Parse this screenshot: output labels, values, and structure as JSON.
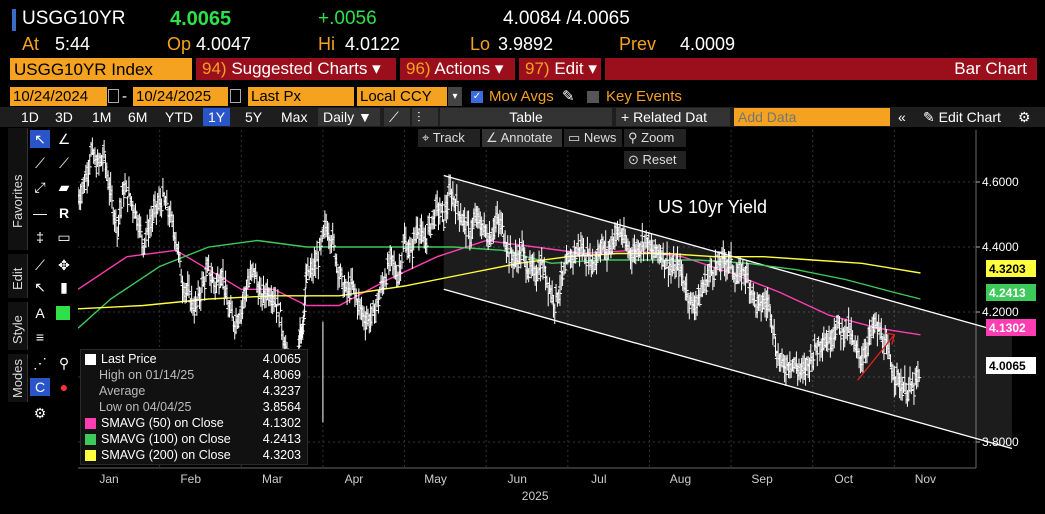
{
  "quote": {
    "ticker": "USGG10YR",
    "last": "4.0065",
    "change": "+.0056",
    "bid_ask": "4.0084 /4.0065",
    "at_label": "At",
    "time": "5:44",
    "open_label": "Op",
    "open": "4.0047",
    "high_label": "Hi",
    "high": "4.0122",
    "low_label": "Lo",
    "low": "3.9892",
    "prev_label": "Prev",
    "prev": "4.0009"
  },
  "function_bar": {
    "security": "USGG10YR Index",
    "menus": [
      {
        "num": "94)",
        "label": "Suggested Charts",
        "arrow": "▾"
      },
      {
        "num": "96)",
        "label": "Actions",
        "arrow": "▾"
      },
      {
        "num": "97)",
        "label": "Edit",
        "arrow": "▾"
      }
    ],
    "chart_type": "Bar Chart"
  },
  "settings": {
    "start_date": "10/24/2024",
    "date_sep": "-",
    "end_date": "10/24/2025",
    "field": "Last Px",
    "currency": "Local CCY",
    "mov_avgs_label": "Mov Avgs",
    "mov_avgs_checked": true,
    "key_events_label": "Key Events",
    "key_events_checked": false
  },
  "toolbar": {
    "periods": [
      "1D",
      "3D",
      "1M",
      "6M",
      "YTD",
      "1Y",
      "5Y",
      "Max"
    ],
    "active_period": "1Y",
    "frequency": "Daily ▼",
    "table_label": "Table",
    "related_label": "+ Related Dat",
    "add_data_placeholder": "Add Data",
    "edit_chart_label": "Edit Chart",
    "collapse_glyph": "«"
  },
  "chart_tools": {
    "track": "Track",
    "annotate": "Annotate",
    "news": "News",
    "zoom": "Zoom",
    "reset": "Reset"
  },
  "palette_tabs": [
    "Favorites",
    "Edit",
    "Style",
    "Modes"
  ],
  "chart_data": {
    "type": "bar",
    "title": "US 10yr Yield",
    "x_year_label": "2025",
    "x_months": [
      "Jan",
      "Feb",
      "Mar",
      "Apr",
      "May",
      "Jun",
      "Jul",
      "Aug",
      "Sep",
      "Oct",
      "Nov"
    ],
    "y_ticks": [
      "4.6000",
      "4.4000",
      "4.2000",
      "3.8000"
    ],
    "ylim": [
      3.72,
      4.76
    ],
    "series": [
      {
        "name": "Last Price",
        "color": "#ffffff",
        "current": "4.0065",
        "points": [
          [
            0.0,
            4.55
          ],
          [
            0.02,
            4.6
          ],
          [
            0.04,
            4.69
          ],
          [
            0.06,
            4.65
          ],
          [
            0.08,
            4.68
          ],
          [
            0.1,
            4.56
          ],
          [
            0.12,
            4.46
          ],
          [
            0.14,
            4.58
          ],
          [
            0.16,
            4.55
          ],
          [
            0.18,
            4.5
          ],
          [
            0.2,
            4.41
          ],
          [
            0.22,
            4.47
          ],
          [
            0.24,
            4.52
          ],
          [
            0.26,
            4.55
          ],
          [
            0.28,
            4.5
          ],
          [
            0.3,
            4.43
          ],
          [
            0.32,
            4.29
          ],
          [
            0.34,
            4.25
          ],
          [
            0.36,
            4.21
          ],
          [
            0.38,
            4.28
          ],
          [
            0.4,
            4.33
          ],
          [
            0.42,
            4.28
          ],
          [
            0.44,
            4.33
          ],
          [
            0.46,
            4.21
          ],
          [
            0.48,
            4.17
          ],
          [
            0.5,
            4.21
          ],
          [
            0.52,
            4.29
          ],
          [
            0.54,
            4.33
          ],
          [
            0.56,
            4.24
          ],
          [
            0.58,
            4.27
          ],
          [
            0.6,
            4.25
          ],
          [
            0.62,
            4.19
          ],
          [
            0.64,
            4.06
          ],
          [
            0.66,
            3.96
          ],
          [
            0.67,
            4.0
          ],
          [
            0.68,
            4.12
          ],
          [
            0.69,
            4.18
          ],
          [
            0.7,
            4.31
          ],
          [
            0.72,
            4.33
          ],
          [
            0.74,
            4.38
          ],
          [
            0.76,
            4.47
          ],
          [
            0.78,
            4.42
          ],
          [
            0.8,
            4.32
          ],
          [
            0.82,
            4.26
          ],
          [
            0.84,
            4.28
          ],
          [
            0.86,
            4.22
          ],
          [
            0.88,
            4.18
          ],
          [
            0.9,
            4.18
          ],
          [
            0.92,
            4.24
          ],
          [
            0.94,
            4.31
          ],
          [
            0.96,
            4.36
          ],
          [
            0.98,
            4.31
          ],
          [
            1.0,
            4.42
          ],
          [
            1.02,
            4.38
          ],
          [
            1.04,
            4.47
          ],
          [
            1.06,
            4.41
          ],
          [
            1.08,
            4.47
          ],
          [
            1.1,
            4.52
          ],
          [
            1.12,
            4.49
          ],
          [
            1.14,
            4.57
          ],
          [
            1.16,
            4.53
          ],
          [
            1.18,
            4.48
          ],
          [
            1.2,
            4.44
          ],
          [
            1.22,
            4.49
          ],
          [
            1.24,
            4.46
          ],
          [
            1.26,
            4.43
          ],
          [
            1.28,
            4.48
          ],
          [
            1.3,
            4.46
          ],
          [
            1.32,
            4.38
          ],
          [
            1.34,
            4.36
          ],
          [
            1.36,
            4.39
          ],
          [
            1.38,
            4.33
          ],
          [
            1.4,
            4.32
          ],
          [
            1.42,
            4.35
          ],
          [
            1.44,
            4.29
          ],
          [
            1.46,
            4.23
          ],
          [
            1.48,
            4.29
          ],
          [
            1.5,
            4.35
          ],
          [
            1.52,
            4.38
          ],
          [
            1.54,
            4.4
          ],
          [
            1.56,
            4.37
          ],
          [
            1.58,
            4.35
          ],
          [
            1.6,
            4.41
          ],
          [
            1.62,
            4.38
          ],
          [
            1.64,
            4.43
          ],
          [
            1.66,
            4.45
          ],
          [
            1.68,
            4.4
          ],
          [
            1.7,
            4.38
          ],
          [
            1.72,
            4.41
          ],
          [
            1.74,
            4.42
          ],
          [
            1.76,
            4.38
          ],
          [
            1.78,
            4.39
          ],
          [
            1.8,
            4.36
          ],
          [
            1.82,
            4.33
          ],
          [
            1.84,
            4.34
          ],
          [
            1.86,
            4.28
          ],
          [
            1.88,
            4.22
          ],
          [
            1.9,
            4.24
          ],
          [
            1.92,
            4.29
          ],
          [
            1.94,
            4.33
          ],
          [
            1.96,
            4.34
          ],
          [
            1.98,
            4.36
          ],
          [
            2.0,
            4.35
          ],
          [
            2.02,
            4.3
          ],
          [
            2.04,
            4.33
          ],
          [
            2.06,
            4.28
          ],
          [
            2.08,
            4.21
          ],
          [
            2.1,
            4.23
          ],
          [
            2.12,
            4.22
          ],
          [
            2.14,
            4.07
          ],
          [
            2.16,
            4.03
          ],
          [
            2.18,
            4.05
          ],
          [
            2.2,
            4.03
          ],
          [
            2.22,
            4.01
          ],
          [
            2.24,
            4.05
          ],
          [
            2.26,
            4.09
          ],
          [
            2.28,
            4.12
          ],
          [
            2.3,
            4.11
          ],
          [
            2.32,
            4.16
          ],
          [
            2.34,
            4.14
          ],
          [
            2.36,
            4.15
          ],
          [
            2.38,
            4.08
          ],
          [
            2.4,
            4.06
          ],
          [
            2.42,
            4.11
          ],
          [
            2.44,
            4.16
          ],
          [
            2.46,
            4.13
          ],
          [
            2.48,
            4.07
          ],
          [
            2.5,
            4.01
          ],
          [
            2.52,
            3.98
          ],
          [
            2.54,
            3.96
          ],
          [
            2.56,
            3.97
          ],
          [
            2.58,
            4.01
          ]
        ]
      },
      {
        "name": "SMAVG (50)  on Close",
        "color": "#ff3db3",
        "current": "4.1302",
        "points": [
          [
            0.0,
            4.27
          ],
          [
            0.15,
            4.37
          ],
          [
            0.3,
            4.39
          ],
          [
            0.4,
            4.33
          ],
          [
            0.5,
            4.27
          ],
          [
            0.6,
            4.27
          ],
          [
            0.7,
            4.22
          ],
          [
            0.8,
            4.22
          ],
          [
            0.95,
            4.3
          ],
          [
            1.1,
            4.37
          ],
          [
            1.25,
            4.42
          ],
          [
            1.4,
            4.4
          ],
          [
            1.55,
            4.38
          ],
          [
            1.7,
            4.39
          ],
          [
            1.85,
            4.37
          ],
          [
            2.0,
            4.32
          ],
          [
            2.15,
            4.26
          ],
          [
            2.3,
            4.19
          ],
          [
            2.45,
            4.15
          ],
          [
            2.58,
            4.13
          ]
        ]
      },
      {
        "name": "SMAVG (100)  on Close",
        "color": "#3ec95b",
        "current": "4.2413",
        "points": [
          [
            0.0,
            4.15
          ],
          [
            0.1,
            4.24
          ],
          [
            0.25,
            4.34
          ],
          [
            0.4,
            4.4
          ],
          [
            0.55,
            4.42
          ],
          [
            0.7,
            4.4
          ],
          [
            0.85,
            4.4
          ],
          [
            1.0,
            4.4
          ],
          [
            1.15,
            4.4
          ],
          [
            1.3,
            4.39
          ],
          [
            1.45,
            4.35
          ],
          [
            1.6,
            4.36
          ],
          [
            1.75,
            4.36
          ],
          [
            1.9,
            4.36
          ],
          [
            2.05,
            4.35
          ],
          [
            2.2,
            4.33
          ],
          [
            2.35,
            4.3
          ],
          [
            2.5,
            4.26
          ],
          [
            2.58,
            4.24
          ]
        ]
      },
      {
        "name": "SMAVG (200)  on Close",
        "color": "#ffff3d",
        "current": "4.3203",
        "points": [
          [
            0.0,
            4.21
          ],
          [
            0.2,
            4.22
          ],
          [
            0.4,
            4.24
          ],
          [
            0.6,
            4.25
          ],
          [
            0.8,
            4.25
          ],
          [
            1.0,
            4.28
          ],
          [
            1.2,
            4.32
          ],
          [
            1.35,
            4.35
          ],
          [
            1.5,
            4.37
          ],
          [
            1.65,
            4.38
          ],
          [
            1.8,
            4.38
          ],
          [
            1.95,
            4.37
          ],
          [
            2.1,
            4.37
          ],
          [
            2.25,
            4.36
          ],
          [
            2.4,
            4.35
          ],
          [
            2.58,
            4.32
          ]
        ]
      }
    ],
    "stats": [
      {
        "label": "High on 01/14/25",
        "value": "4.8069"
      },
      {
        "label": "Average",
        "value": "4.3237"
      },
      {
        "label": "Low on 04/04/25",
        "value": "3.8564"
      }
    ],
    "trend_channel": {
      "upper": [
        [
          1.12,
          4.62
        ],
        [
          2.86,
          4.13
        ]
      ],
      "lower": [
        [
          1.12,
          4.27
        ],
        [
          2.86,
          3.78
        ]
      ]
    }
  }
}
